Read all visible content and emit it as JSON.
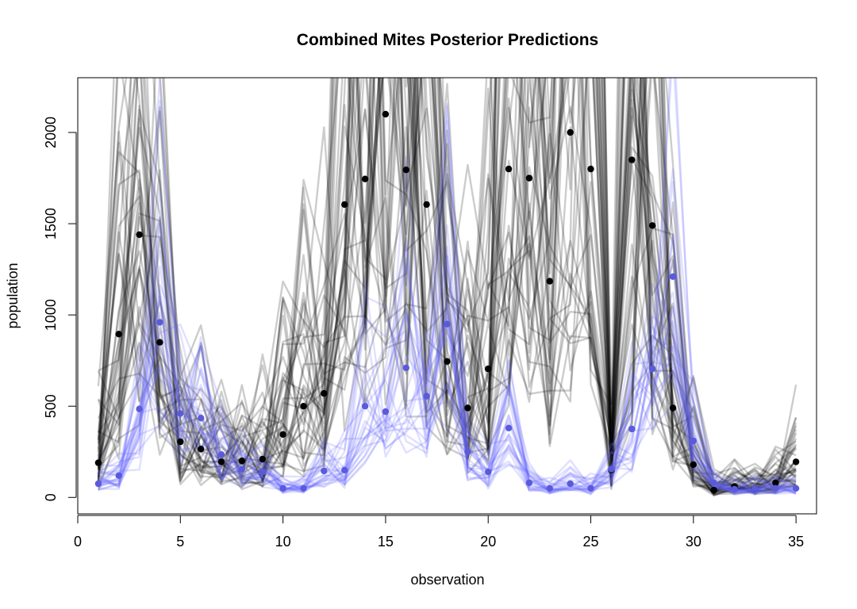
{
  "chart_data": {
    "type": "line",
    "title": "Combined Mites Posterior Predictions",
    "xlabel": "observation",
    "ylabel": "population",
    "xlim": [
      0,
      36
    ],
    "ylim": [
      -90,
      2300
    ],
    "xticks": [
      0,
      5,
      10,
      15,
      20,
      25,
      30,
      35
    ],
    "yticks": [
      0,
      500,
      1000,
      1500,
      2000
    ],
    "colors": {
      "posterior_black": "#000000",
      "posterior_blue": "#6464ff",
      "observed_black": "#000000",
      "observed_blue": "#5a5adc"
    },
    "series": [
      {
        "name": "observed group A (black points)",
        "x": [
          1,
          2,
          3,
          4,
          5,
          6,
          7,
          8,
          9,
          10,
          11,
          12,
          13,
          14,
          15,
          16,
          17,
          18,
          19,
          20,
          21,
          22,
          23,
          24,
          25,
          26,
          27,
          28,
          29,
          30,
          31,
          32,
          33,
          34,
          35
        ],
        "values": [
          190,
          895,
          1440,
          850,
          305,
          265,
          195,
          200,
          210,
          345,
          500,
          570,
          1605,
          1745,
          2100,
          1795,
          1605,
          745,
          490,
          705,
          1800,
          1750,
          1185,
          2000,
          1800,
          150,
          1850,
          1490,
          490,
          180,
          40,
          60,
          50,
          80,
          195
        ]
      },
      {
        "name": "observed group B (blue points)",
        "x": [
          1,
          2,
          3,
          4,
          5,
          6,
          7,
          8,
          9,
          10,
          11,
          12,
          13,
          14,
          15,
          16,
          17,
          18,
          19,
          20,
          21,
          22,
          23,
          24,
          25,
          26,
          27,
          28,
          29,
          30,
          31,
          32,
          33,
          34,
          35
        ],
        "values": [
          75,
          120,
          485,
          960,
          460,
          435,
          235,
          155,
          140,
          50,
          50,
          145,
          150,
          500,
          470,
          710,
          555,
          950,
          250,
          140,
          380,
          80,
          50,
          75,
          50,
          155,
          375,
          705,
          1210,
          310,
          80,
          45,
          50,
          50,
          50
        ]
      }
    ],
    "posterior_draws": {
      "black_count": 40,
      "blue_count": 25,
      "opacity": 0.2
    }
  }
}
